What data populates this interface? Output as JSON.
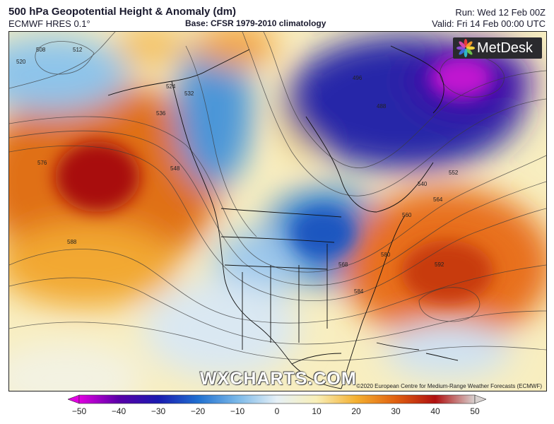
{
  "header": {
    "title": "500 hPa Geopotential Height & Anomaly (dm)",
    "model": "ECMWF HRES 0.1°",
    "base": "Base: CFSR 1979-2010 climatology",
    "run": "Run: Wed 12 Feb 00Z",
    "valid": "Valid: Fri 14 Feb 00:00 UTC"
  },
  "logo": {
    "text": "MetDesk",
    "icon": "metdesk-flower-icon"
  },
  "watermark": "WXCHARTS.COM",
  "copyright": "©2020 European Centre for Medium-Range Weather Forecasts (ECMWF)",
  "contour_labels": [
    "508",
    "512",
    "520",
    "524",
    "532",
    "536",
    "548",
    "576",
    "588",
    "496",
    "488",
    "552",
    "540",
    "564",
    "560",
    "580",
    "568",
    "584",
    "592"
  ],
  "colorbar": {
    "ticks": [
      "−50",
      "−40",
      "−30",
      "−20",
      "−10",
      "0",
      "10",
      "20",
      "30",
      "40",
      "50"
    ],
    "range": [
      -50,
      50
    ],
    "colors": [
      "#e000e0",
      "#5a00a8",
      "#1a1ab0",
      "#1f6fd0",
      "#7ab8e8",
      "#e6f0f6",
      "#f8efb8",
      "#f4b030",
      "#e06010",
      "#b01010",
      "#4a0a0a"
    ]
  }
}
